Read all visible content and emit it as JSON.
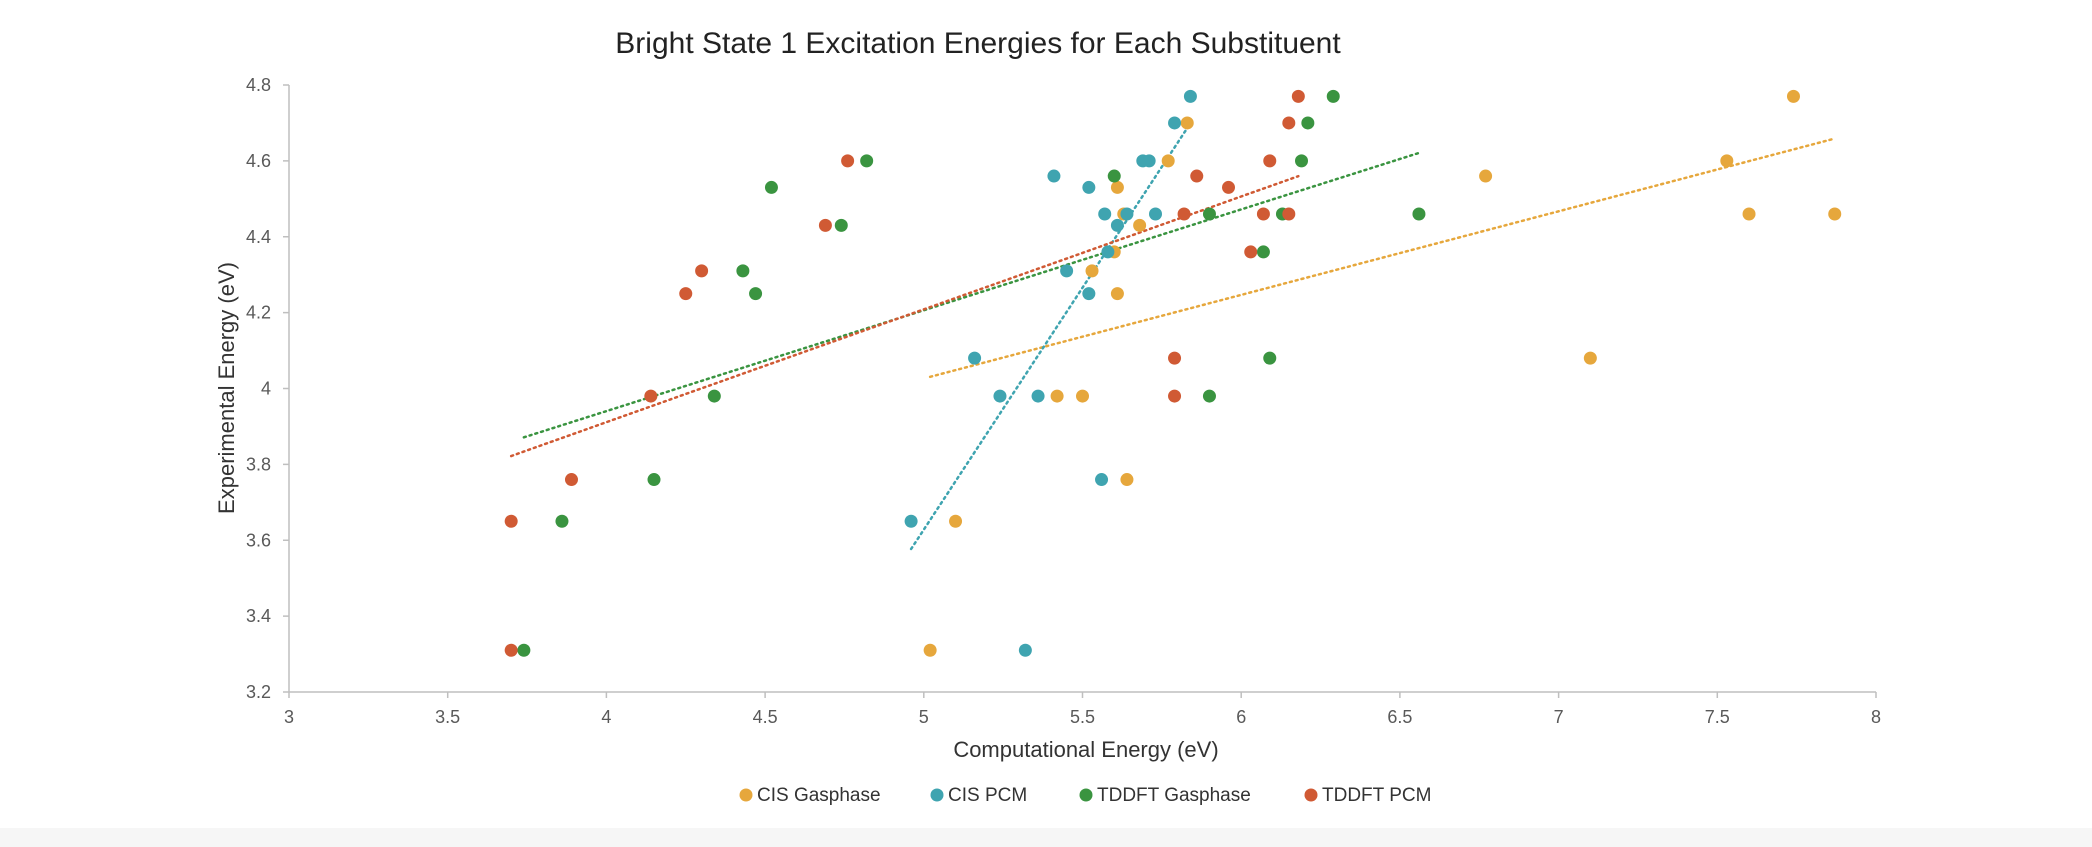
{
  "chart_data": {
    "type": "scatter",
    "title": "Bright State 1 Excitation Energies for Each Substituent",
    "xlabel": "Computational Energy (eV)",
    "ylabel": "Experimental Energy (eV)",
    "xlim": [
      3,
      8
    ],
    "ylim": [
      3.2,
      4.8
    ],
    "xticks": [
      "3",
      "3.5",
      "4",
      "4.5",
      "5",
      "5.5",
      "6",
      "6.5",
      "7",
      "7.5",
      "8"
    ],
    "yticks": [
      "3.2",
      "3.4",
      "3.6",
      "3.8",
      "4",
      "4.2",
      "4.4",
      "4.6",
      "4.8"
    ],
    "grid": false,
    "legend_position": "bottom",
    "trendlines": "linear, dotted",
    "series": [
      {
        "name": "CIS Gasphase",
        "color": "#E6A73C",
        "points": [
          [
            5.02,
            3.31
          ],
          [
            5.1,
            3.65
          ],
          [
            5.64,
            3.76
          ],
          [
            5.42,
            3.98
          ],
          [
            5.5,
            3.98
          ],
          [
            7.1,
            4.08
          ],
          [
            5.61,
            4.25
          ],
          [
            5.53,
            4.31
          ],
          [
            5.6,
            4.36
          ],
          [
            5.68,
            4.43
          ],
          [
            5.63,
            4.46
          ],
          [
            7.6,
            4.46
          ],
          [
            7.87,
            4.46
          ],
          [
            5.61,
            4.53
          ],
          [
            6.77,
            4.56
          ],
          [
            5.77,
            4.6
          ],
          [
            7.53,
            4.6
          ],
          [
            5.83,
            4.7
          ],
          [
            7.74,
            4.77
          ]
        ],
        "trend_x": [
          5.02,
          7.87
        ]
      },
      {
        "name": "CIS PCM",
        "color": "#3FA4B0",
        "points": [
          [
            5.32,
            3.31
          ],
          [
            4.96,
            3.65
          ],
          [
            5.56,
            3.76
          ],
          [
            5.24,
            3.98
          ],
          [
            5.36,
            3.98
          ],
          [
            5.16,
            4.08
          ],
          [
            5.52,
            4.25
          ],
          [
            5.45,
            4.31
          ],
          [
            5.58,
            4.36
          ],
          [
            5.61,
            4.43
          ],
          [
            5.57,
            4.46
          ],
          [
            5.64,
            4.46
          ],
          [
            5.73,
            4.46
          ],
          [
            5.52,
            4.53
          ],
          [
            5.41,
            4.56
          ],
          [
            5.69,
            4.6
          ],
          [
            5.71,
            4.6
          ],
          [
            5.79,
            4.7
          ],
          [
            5.84,
            4.77
          ]
        ],
        "trend_x": [
          4.96,
          5.84
        ]
      },
      {
        "name": "TDDFT Gasphase",
        "color": "#3A9440",
        "points": [
          [
            3.74,
            3.31
          ],
          [
            3.86,
            3.65
          ],
          [
            4.15,
            3.76
          ],
          [
            4.34,
            3.98
          ],
          [
            5.9,
            3.98
          ],
          [
            6.09,
            4.08
          ],
          [
            4.47,
            4.25
          ],
          [
            4.43,
            4.31
          ],
          [
            6.07,
            4.36
          ],
          [
            4.74,
            4.43
          ],
          [
            5.9,
            4.46
          ],
          [
            6.13,
            4.46
          ],
          [
            6.56,
            4.46
          ],
          [
            4.52,
            4.53
          ],
          [
            5.6,
            4.56
          ],
          [
            4.82,
            4.6
          ],
          [
            6.19,
            4.6
          ],
          [
            6.21,
            4.7
          ],
          [
            6.29,
            4.77
          ]
        ],
        "trend_x": [
          3.74,
          6.56
        ]
      },
      {
        "name": "TDDFT PCM",
        "color": "#D05A34",
        "points": [
          [
            3.7,
            3.31
          ],
          [
            3.7,
            3.65
          ],
          [
            3.89,
            3.76
          ],
          [
            4.14,
            3.98
          ],
          [
            5.79,
            3.98
          ],
          [
            5.79,
            4.08
          ],
          [
            4.25,
            4.25
          ],
          [
            4.3,
            4.31
          ],
          [
            6.03,
            4.36
          ],
          [
            4.69,
            4.43
          ],
          [
            5.82,
            4.46
          ],
          [
            6.07,
            4.46
          ],
          [
            6.15,
            4.46
          ],
          [
            5.96,
            4.53
          ],
          [
            5.86,
            4.56
          ],
          [
            4.76,
            4.6
          ],
          [
            6.09,
            4.6
          ],
          [
            6.15,
            4.7
          ],
          [
            6.18,
            4.77
          ]
        ],
        "trend_x": [
          3.7,
          6.18
        ]
      }
    ]
  }
}
